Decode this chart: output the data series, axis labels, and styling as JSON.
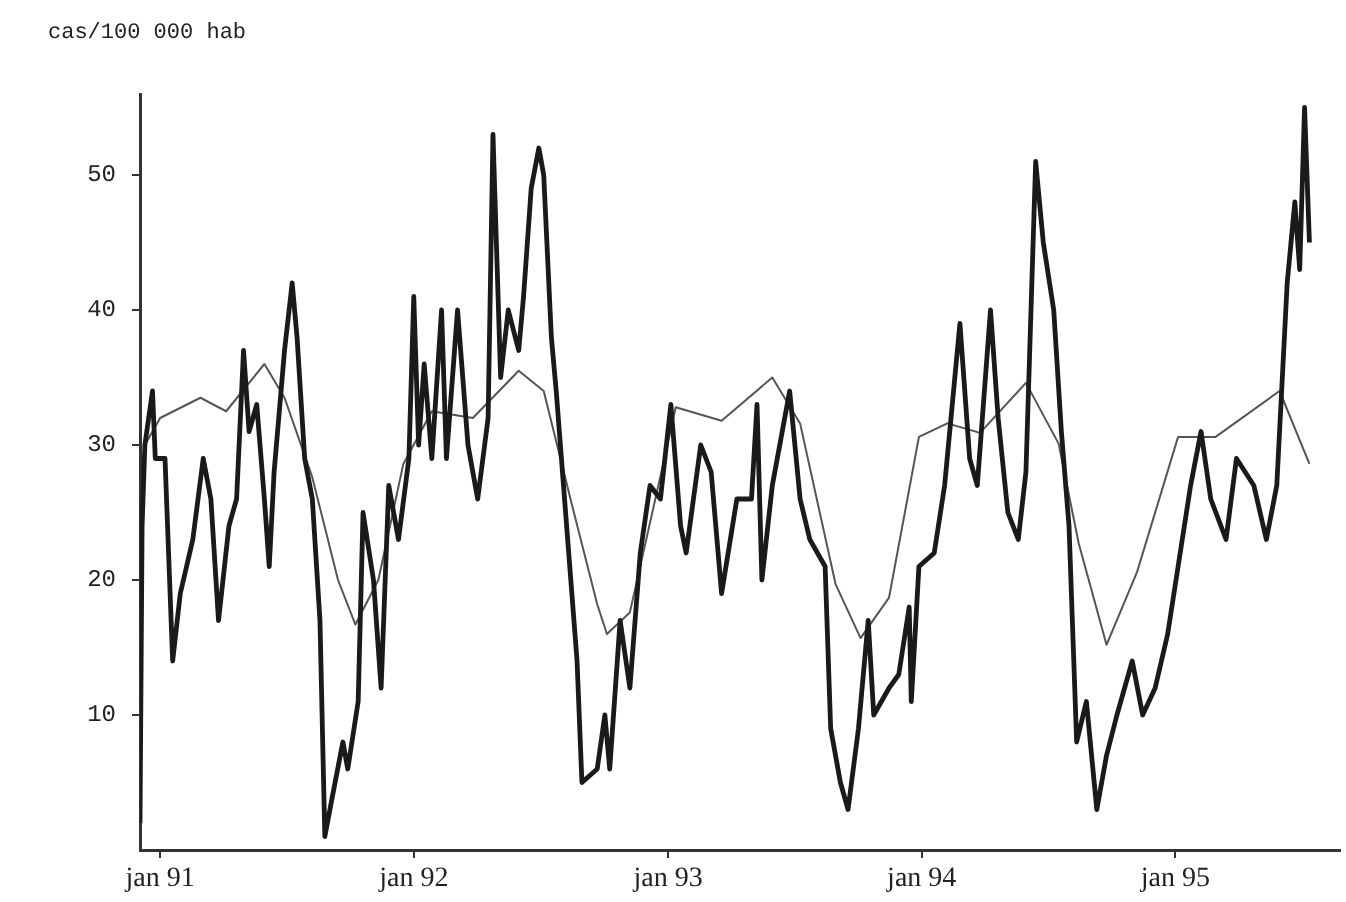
{
  "chart_data": {
    "type": "line",
    "ylabel": "cas/100 000 hab",
    "xlim": [
      "1990-12-03",
      "1995-08-26"
    ],
    "ylim": [
      0,
      56
    ],
    "xticks": [
      {
        "value": "1991-01-01",
        "label": "jan 91"
      },
      {
        "value": "1992-01-01",
        "label": "jan 92"
      },
      {
        "value": "1993-01-01",
        "label": "jan 93"
      },
      {
        "value": "1994-01-01",
        "label": "jan 94"
      },
      {
        "value": "1995-01-01",
        "label": "jan 95"
      }
    ],
    "yticks": [
      10,
      20,
      30,
      40,
      50
    ],
    "grid": false,
    "legend": false,
    "marker": "none",
    "line_style": "solid",
    "series": [
      {
        "color": "#1a1a1a",
        "x": [
          "1990-12-03",
          "1990-12-06",
          "1990-12-10",
          "1990-12-21",
          "1990-12-25",
          "1991-01-08",
          "1991-01-19",
          "1991-01-30",
          "1991-02-17",
          "1991-03-04",
          "1991-03-15",
          "1991-03-26",
          "1991-04-10",
          "1991-04-21",
          "1991-05-01",
          "1991-05-09",
          "1991-05-20",
          "1991-05-31",
          "1991-06-07",
          "1991-06-14",
          "1991-06-29",
          "1991-07-10",
          "1991-07-17",
          "1991-07-28",
          "1991-08-08",
          "1991-08-19",
          "1991-08-26",
          "1991-09-06",
          "1991-09-21",
          "1991-09-28",
          "1991-10-13",
          "1991-10-20",
          "1991-11-04",
          "1991-11-15",
          "1991-11-26",
          "1991-12-10",
          "1991-12-25",
          "1992-01-01",
          "1992-01-08",
          "1992-01-16",
          "1992-01-27",
          "1992-02-10",
          "1992-02-17",
          "1992-03-04",
          "1992-03-19",
          "1992-04-02",
          "1992-04-17",
          "1992-04-24",
          "1992-05-05",
          "1992-05-16",
          "1992-05-31",
          "1992-06-07",
          "1992-06-18",
          "1992-06-29",
          "1992-07-06",
          "1992-07-17",
          "1992-07-24",
          "1992-08-08",
          "1992-08-23",
          "1992-08-30",
          "1992-09-21",
          "1992-10-02",
          "1992-10-09",
          "1992-10-24",
          "1992-11-07",
          "1992-11-22",
          "1992-12-06",
          "1992-12-21",
          "1993-01-05",
          "1993-01-19",
          "1993-01-27",
          "1993-02-17",
          "1993-03-04",
          "1993-03-19",
          "1993-04-10",
          "1993-05-01",
          "1993-05-09",
          "1993-05-16",
          "1993-05-31",
          "1993-06-25",
          "1993-07-10",
          "1993-07-24",
          "1993-08-15",
          "1993-08-23",
          "1993-09-06",
          "1993-09-17",
          "1993-10-02",
          "1993-10-16",
          "1993-10-24",
          "1993-11-15",
          "1993-11-29",
          "1993-12-14",
          "1993-12-17",
          "1993-12-28",
          "1994-01-19",
          "1994-02-03",
          "1994-02-25",
          "1994-03-11",
          "1994-03-22",
          "1994-04-10",
          "1994-04-21",
          "1994-05-05",
          "1994-05-20",
          "1994-05-31",
          "1994-06-14",
          "1994-06-25",
          "1994-07-10",
          "1994-07-21",
          "1994-08-01",
          "1994-08-12",
          "1994-08-26",
          "1994-09-10",
          "1994-09-24",
          "1994-10-09",
          "1994-10-31",
          "1994-11-15",
          "1994-12-03",
          "1994-12-21",
          "1995-01-05",
          "1995-01-23",
          "1995-02-07",
          "1995-02-21",
          "1995-03-15",
          "1995-03-30",
          "1995-04-24",
          "1995-05-12",
          "1995-05-27",
          "1995-06-11",
          "1995-06-22",
          "1995-06-29",
          "1995-07-06",
          "1995-07-13"
        ],
        "values": [
          2,
          24,
          30,
          34,
          29,
          29,
          14,
          19,
          23,
          29,
          26,
          17,
          24,
          26,
          37,
          31,
          33,
          26,
          21,
          28,
          37,
          42,
          38,
          29,
          26,
          17,
          1,
          4,
          8,
          6,
          11,
          25,
          20,
          12,
          27,
          23,
          29,
          41,
          30,
          36,
          29,
          40,
          29,
          40,
          30,
          26,
          32,
          53,
          35,
          40,
          37,
          41,
          49,
          52,
          50,
          38,
          34,
          24,
          14,
          5,
          6,
          10,
          6,
          17,
          12,
          22,
          27,
          26,
          33,
          24,
          22,
          30,
          28,
          19,
          26,
          26,
          33,
          20,
          27,
          34,
          26,
          23,
          21,
          9,
          5,
          3,
          9,
          17,
          10,
          12,
          13,
          18,
          11,
          21,
          22,
          27,
          39,
          29,
          27,
          40,
          32,
          25,
          23,
          28,
          51,
          45,
          40,
          31,
          24,
          8,
          11,
          3,
          7,
          10,
          14,
          10,
          12,
          16,
          21,
          27,
          31,
          26,
          23,
          29,
          27,
          23,
          27,
          42,
          48,
          43,
          55,
          45
        ]
      },
      {
        "color": "#555555",
        "x": [
          "1990-12-10",
          "1991-01-01",
          "1991-02-28",
          "1991-04-06",
          "1991-05-31",
          "1991-06-29",
          "1991-08-08",
          "1991-09-14",
          "1991-10-09",
          "1991-11-11",
          "1991-12-17",
          "1992-01-27",
          "1992-03-26",
          "1992-05-31",
          "1992-07-06",
          "1992-08-15",
          "1992-09-21",
          "1992-10-05",
          "1992-11-07",
          "1992-12-25",
          "1993-01-12",
          "1993-03-19",
          "1993-05-31",
          "1993-07-10",
          "1993-08-30",
          "1993-10-05",
          "1993-11-15",
          "1993-12-28",
          "1994-02-07",
          "1994-03-26",
          "1994-05-31",
          "1994-07-17",
          "1994-08-15",
          "1994-09-24",
          "1994-11-07",
          "1995-01-05",
          "1995-02-28",
          "1995-05-31",
          "1995-07-13"
        ],
        "values": [
          30,
          32,
          33.5,
          32.5,
          36,
          33.5,
          27.6,
          20,
          16.7,
          20,
          28.6,
          32.5,
          32,
          35.5,
          34,
          25.7,
          18.2,
          16,
          17.6,
          28.6,
          32.8,
          31.8,
          35,
          31.6,
          19.7,
          15.7,
          18.7,
          30.6,
          31.6,
          30.9,
          34.6,
          30.1,
          22.7,
          15.2,
          20.6,
          30.6,
          30.6,
          34,
          28.6
        ]
      }
    ]
  }
}
